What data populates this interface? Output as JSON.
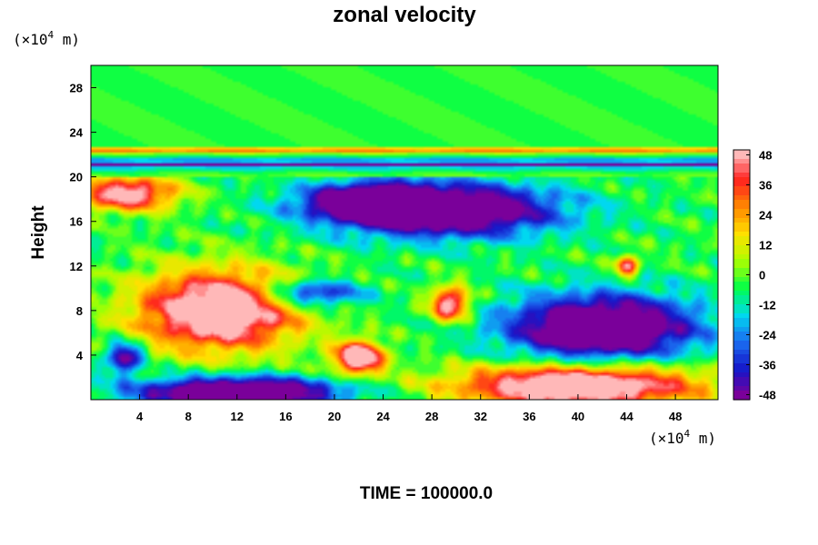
{
  "chart_data": {
    "type": "heatmap",
    "title": "zonal velocity",
    "ylabel": "Height",
    "xlabel": "",
    "x_unit_prefix": "(×10",
    "x_unit_exp": "4",
    "x_unit_suffix": " m)",
    "y_unit_prefix": "(×10",
    "y_unit_exp": "4",
    "y_unit_suffix": " m)",
    "xlim": [
      0,
      51.5
    ],
    "ylim": [
      0,
      30
    ],
    "x_ticks": [
      4,
      8,
      12,
      16,
      20,
      24,
      28,
      32,
      36,
      40,
      44,
      48
    ],
    "y_ticks": [
      4,
      8,
      12,
      16,
      20,
      24,
      28
    ],
    "colorbar": {
      "min": -50,
      "max": 50,
      "tick_labels": [
        48,
        36,
        24,
        12,
        0,
        -12,
        -24,
        -36,
        -48
      ],
      "position": "right"
    },
    "colormap": [
      "#7a009a",
      "#1515c8",
      "#1b6cf0",
      "#00d8f0",
      "#00ff4a",
      "#aaff00",
      "#ffe000",
      "#ff8a00",
      "#ff2020",
      "#ffb8b8"
    ],
    "band_features": [
      {
        "height": 22.4,
        "value": 30
      },
      {
        "height": 21.6,
        "value": -20
      },
      {
        "height": 21.1,
        "value": -50
      },
      {
        "height": 20.6,
        "value": -10
      }
    ],
    "features": [
      {
        "label": "strong westward jet aloft",
        "x": 29,
        "y": 17,
        "rx": 9,
        "ry": 2.3,
        "value": -48
      },
      {
        "label": "westward core",
        "x": 23,
        "y": 17.8,
        "rx": 5,
        "ry": 1.5,
        "value": -40
      },
      {
        "label": "eastward upper-left",
        "x": 3,
        "y": 18.5,
        "rx": 4,
        "ry": 1.5,
        "value": 40
      },
      {
        "label": "strong eastward lower-left",
        "x": 10.5,
        "y": 8,
        "rx": 6.5,
        "ry": 3.5,
        "value": 50
      },
      {
        "label": "eastward surface right",
        "x": 40,
        "y": 1.3,
        "rx": 10,
        "ry": 1.8,
        "value": 50
      },
      {
        "label": "strong westward lower-right",
        "x": 42,
        "y": 6.5,
        "rx": 7.5,
        "ry": 2.8,
        "value": -50
      },
      {
        "label": "westward surface left",
        "x": 12,
        "y": 0.7,
        "rx": 8,
        "ry": 1.3,
        "value": -50
      },
      {
        "label": "eastward blob",
        "x": 22,
        "y": 3.8,
        "rx": 2,
        "ry": 1.4,
        "value": 50
      },
      {
        "label": "eastward blob mid",
        "x": 29.5,
        "y": 8.6,
        "rx": 1.6,
        "ry": 1.5,
        "value": 40
      },
      {
        "label": "eastward blob right",
        "x": 44,
        "y": 12,
        "rx": 0.9,
        "ry": 0.9,
        "value": 36
      },
      {
        "label": "westward blob left",
        "x": 2.8,
        "y": 3.8,
        "rx": 1.4,
        "ry": 1.3,
        "value": -36
      },
      {
        "label": "westward patch mid",
        "x": 18,
        "y": 9.5,
        "rx": 4,
        "ry": 1.2,
        "value": -30
      }
    ]
  },
  "footer": {
    "time_label": "TIME = 100000.0"
  }
}
